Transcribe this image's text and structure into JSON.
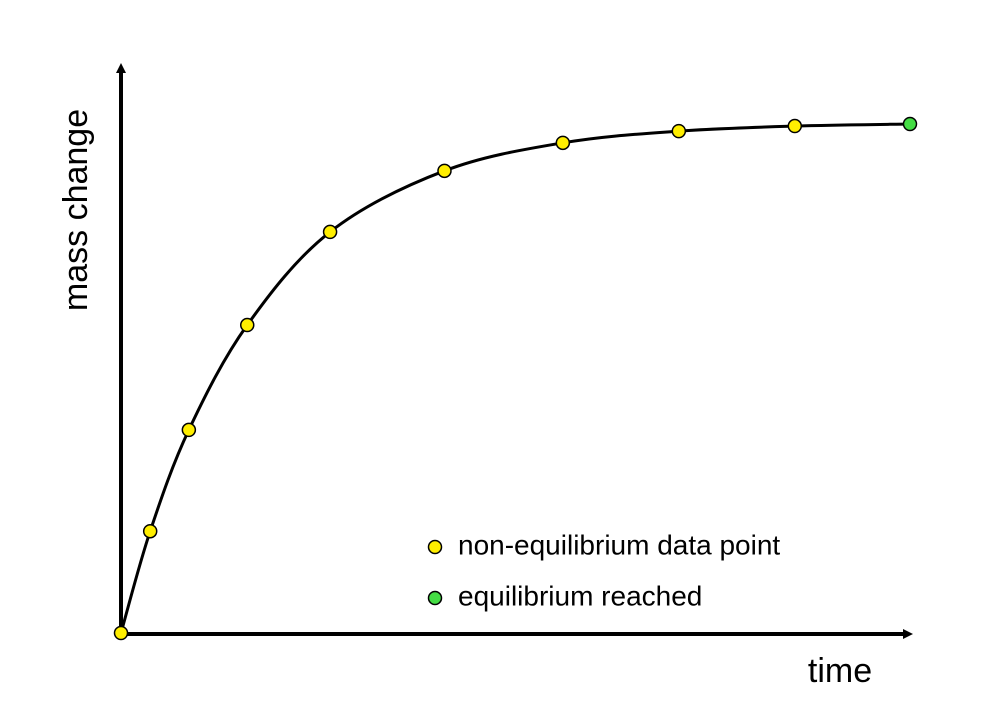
{
  "chart_data": {
    "type": "line",
    "xlabel": "time",
    "ylabel": "mass change",
    "xlim": [
      0,
      100
    ],
    "ylim": [
      0,
      100
    ],
    "series": [
      {
        "name": "non-equilibrium data point",
        "color": "#ffee00",
        "x": [
          0,
          3.7,
          8.6,
          16,
          26.5,
          41,
          56,
          70.7,
          85.4
        ],
        "values": [
          0,
          20,
          39.9,
          60.5,
          78.8,
          90.8,
          96.3,
          98.6,
          99.6
        ]
      },
      {
        "name": "equilibrium reached",
        "color": "#44dd44",
        "x": [
          100
        ],
        "values": [
          100
        ]
      }
    ]
  }
}
